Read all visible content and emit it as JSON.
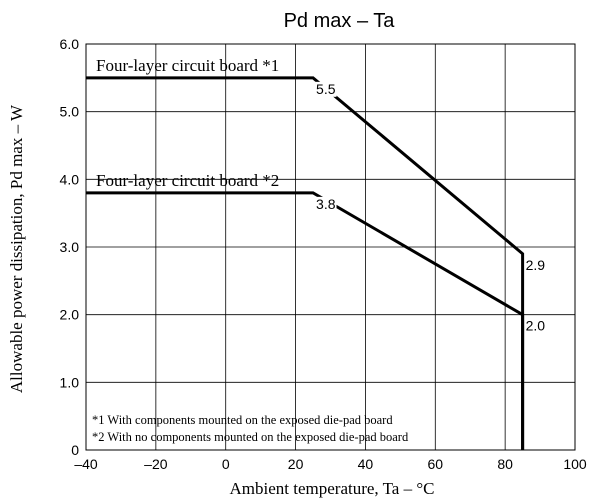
{
  "chart_data": {
    "type": "line",
    "title": "Pd max  –  Ta",
    "xlabel": "Ambient temperature, Ta  –  °C",
    "ylabel": "Allowable power dissipation, Pd max  –  W",
    "xlim": [
      -40,
      100
    ],
    "ylim": [
      0,
      6.0
    ],
    "x_ticks": [
      "–40",
      "–20",
      "0",
      "20",
      "40",
      "60",
      "80",
      "100"
    ],
    "x_tick_values": [
      -40,
      -20,
      0,
      20,
      40,
      60,
      80,
      100
    ],
    "y_ticks": [
      "0",
      "1.0",
      "2.0",
      "3.0",
      "4.0",
      "5.0",
      "6.0"
    ],
    "y_tick_values": [
      0,
      1,
      2,
      3,
      4,
      5,
      6
    ],
    "grid": true,
    "series": [
      {
        "name": "Four-layer circuit board *1",
        "x": [
          -40,
          25,
          85,
          85
        ],
        "y": [
          5.5,
          5.5,
          2.9,
          0
        ]
      },
      {
        "name": "Four-layer circuit board *2",
        "x": [
          -40,
          25,
          85,
          85
        ],
        "y": [
          3.8,
          3.8,
          2.0,
          0
        ]
      }
    ],
    "annotations": [
      {
        "text": "5.5",
        "x": 25,
        "y": 5.5
      },
      {
        "text": "3.8",
        "x": 25,
        "y": 3.8
      },
      {
        "text": "2.9",
        "x": 85,
        "y": 2.9
      },
      {
        "text": "2.0",
        "x": 85,
        "y": 2.0
      }
    ],
    "notes": [
      "*1 With components mounted on the exposed die-pad board",
      "*2 With no components mounted on the exposed die-pad board"
    ],
    "colors": {
      "line": "#000000",
      "grid": "#000000",
      "background": "#ffffff"
    }
  }
}
